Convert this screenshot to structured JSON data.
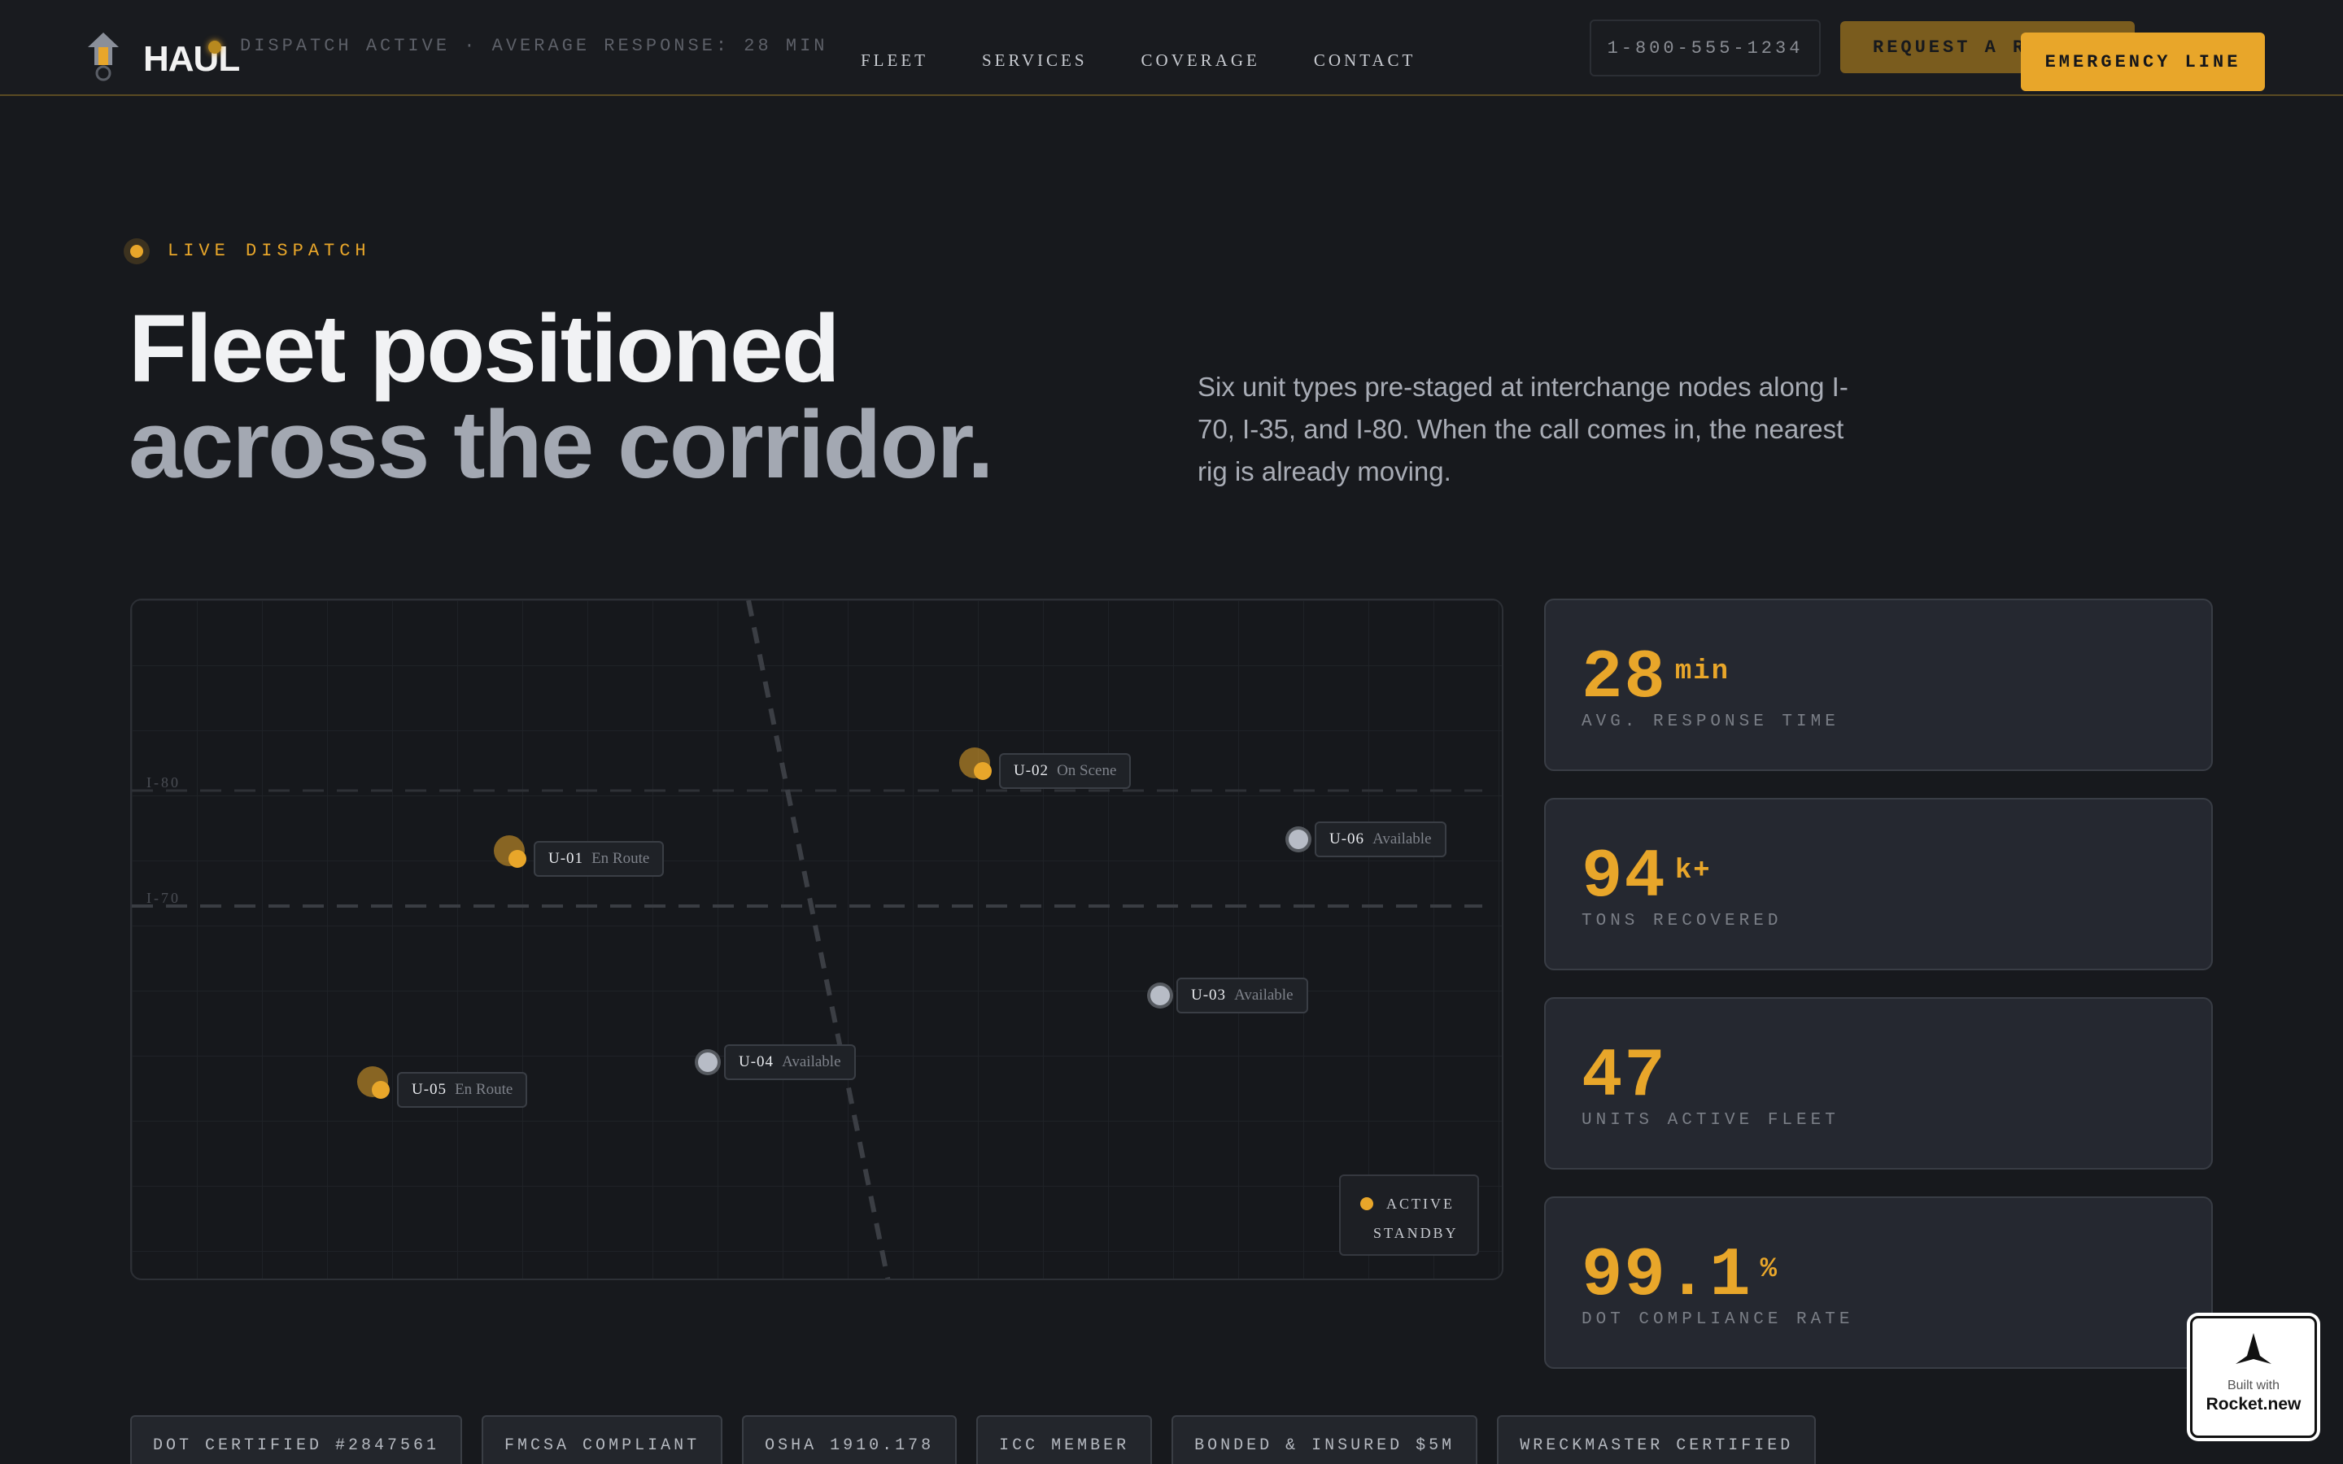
{
  "header": {
    "brand": "HAUL",
    "status": "DISPATCH ACTIVE · AVERAGE RESPONSE: 28 MIN",
    "nav": [
      "FLEET",
      "SERVICES",
      "COVERAGE",
      "CONTACT"
    ],
    "phone": "1-800-555-1234",
    "request_button": "REQUEST A RE",
    "emergency_button": "EMERGENCY LINE"
  },
  "hero": {
    "eyebrow": "LIVE DISPATCH",
    "title_line1": "Fleet positioned",
    "title_line2": "across the corridor.",
    "lead": "Six unit types pre-staged at interchange nodes along I-70, I-35, and I-80. When the call comes in, the nearest rig is already moving."
  },
  "map": {
    "highways": [
      "I-80",
      "I-70"
    ],
    "units": [
      {
        "id": "U-01",
        "status": "En Route",
        "type": "active"
      },
      {
        "id": "U-02",
        "status": "On Scene",
        "type": "active"
      },
      {
        "id": "U-03",
        "status": "Available",
        "type": "standby"
      },
      {
        "id": "U-04",
        "status": "Available",
        "type": "standby"
      },
      {
        "id": "U-05",
        "status": "En Route",
        "type": "active"
      },
      {
        "id": "U-06",
        "status": "Available",
        "type": "standby"
      }
    ],
    "legend": {
      "active": "ACTIVE",
      "standby": "STANDBY"
    },
    "colors": {
      "active": "#e8a62a",
      "standby": "#6c7078"
    }
  },
  "stats": [
    {
      "value": "28",
      "unit": "min",
      "label": "AVG. RESPONSE TIME"
    },
    {
      "value": "94",
      "unit": "k+",
      "label": "TONS RECOVERED"
    },
    {
      "value": "47",
      "unit": "",
      "label": "UNITS ACTIVE FLEET"
    },
    {
      "value": "99.1",
      "unit": "%",
      "label": "DOT COMPLIANCE RATE"
    }
  ],
  "badges": [
    "DOT CERTIFIED #2847561",
    "FMCSA COMPLIANT",
    "OSHA 1910.178",
    "ICC MEMBER",
    "BONDED & INSURED $5M",
    "WRECKMASTER CERTIFIED"
  ],
  "rocket": {
    "built": "Built with",
    "name": "Rocket.new"
  }
}
